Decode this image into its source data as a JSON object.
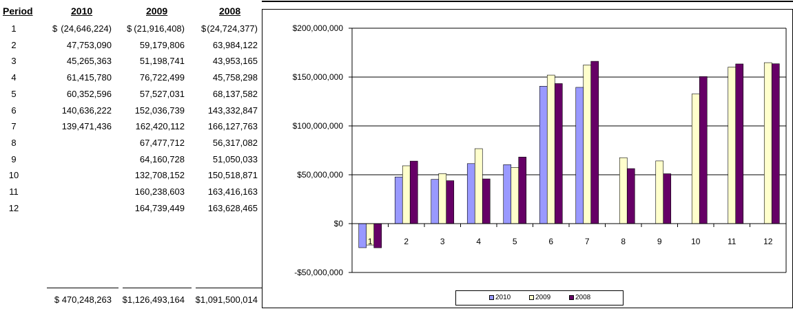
{
  "table": {
    "headers": {
      "period": "Period",
      "y2010": "2010",
      "y2009": "2009",
      "y2008": "2008"
    },
    "rows": [
      {
        "period": "1",
        "v2010": "(24,646,224)",
        "v2009": "(21,916,408)",
        "v2008": "(24,724,377)",
        "dollar": true
      },
      {
        "period": "2",
        "v2010": "47,753,090",
        "v2009": "59,179,806",
        "v2008": "63,984,122"
      },
      {
        "period": "3",
        "v2010": "45,265,363",
        "v2009": "51,198,741",
        "v2008": "43,953,165"
      },
      {
        "period": "4",
        "v2010": "61,415,780",
        "v2009": "76,722,499",
        "v2008": "45,758,298"
      },
      {
        "period": "5",
        "v2010": "60,352,596",
        "v2009": "57,527,031",
        "v2008": "68,137,582"
      },
      {
        "period": "6",
        "v2010": "140,636,222",
        "v2009": "152,036,739",
        "v2008": "143,332,847"
      },
      {
        "period": "7",
        "v2010": "139,471,436",
        "v2009": "162,420,112",
        "v2008": "166,127,763"
      },
      {
        "period": "8",
        "v2010": "",
        "v2009": "67,477,712",
        "v2008": "56,317,082"
      },
      {
        "period": "9",
        "v2010": "",
        "v2009": "64,160,728",
        "v2008": "51,050,033"
      },
      {
        "period": "10",
        "v2010": "",
        "v2009": "132,708,152",
        "v2008": "150,518,871"
      },
      {
        "period": "11",
        "v2010": "",
        "v2009": "160,238,603",
        "v2008": "163,416,163"
      },
      {
        "period": "12",
        "v2010": "",
        "v2009": "164,739,449",
        "v2008": "163,628,465"
      }
    ],
    "dollar_sign": "$",
    "totals": {
      "v2010": "$ 470,248,263",
      "v2009": "$1,126,493,164",
      "v2008": "$1,091,500,014"
    }
  },
  "chart_data": {
    "type": "bar",
    "title": "",
    "xlabel": "",
    "ylabel": "",
    "categories": [
      "1",
      "2",
      "3",
      "4",
      "5",
      "6",
      "7",
      "8",
      "9",
      "10",
      "11",
      "12"
    ],
    "series": [
      {
        "name": "2010",
        "color": "#9999ff",
        "values": [
          -24646224,
          47753090,
          45265363,
          61415780,
          60352596,
          140636222,
          139471436,
          null,
          null,
          null,
          null,
          null
        ]
      },
      {
        "name": "2009",
        "color": "#ffffcc",
        "values": [
          -21916408,
          59179806,
          51198741,
          76722499,
          57527031,
          152036739,
          162420112,
          67477712,
          64160728,
          132708152,
          160238603,
          164739449
        ]
      },
      {
        "name": "2008",
        "color": "#660066",
        "values": [
          -24724377,
          63984122,
          43953165,
          45758298,
          68137582,
          143332847,
          166127763,
          56317082,
          51050033,
          150518871,
          163416163,
          163628465
        ]
      }
    ],
    "ylim": [
      -50000000,
      200000000
    ],
    "yticks": [
      -50000000,
      0,
      50000000,
      100000000,
      150000000,
      200000000
    ],
    "ytick_labels": [
      "-$50,000,000",
      "$0",
      "$50,000,000",
      "$100,000,000",
      "$150,000,000",
      "$200,000,000"
    ],
    "grid": true,
    "legend_position": "bottom-center"
  }
}
